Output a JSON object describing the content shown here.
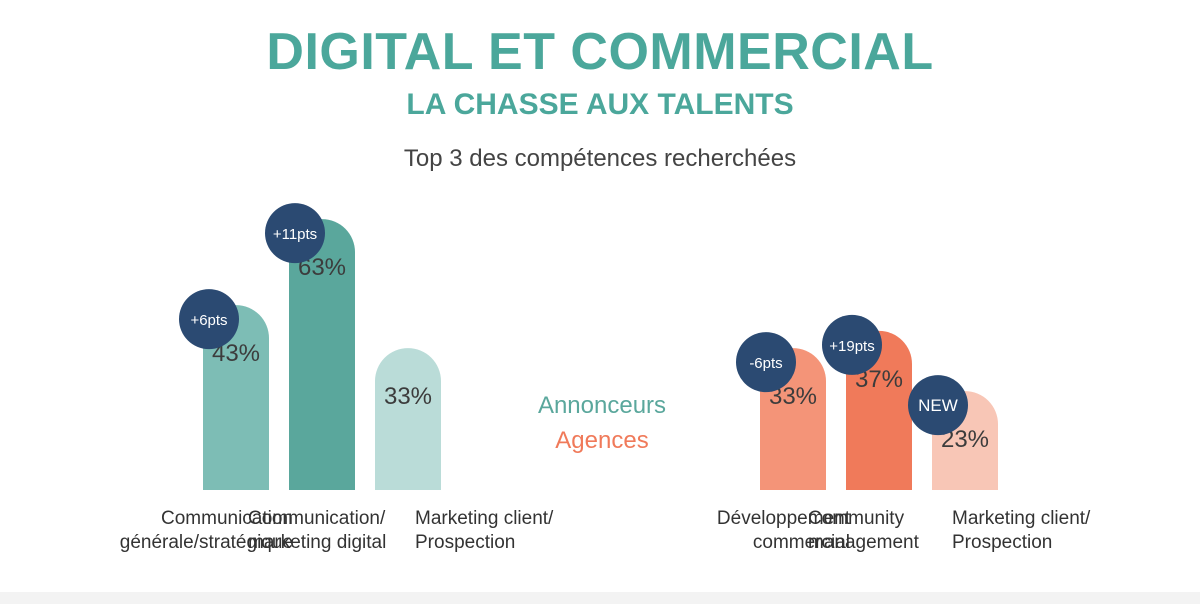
{
  "header": {
    "title": "DIGITAL ET COMMERCIAL",
    "subtitle": "LA CHASSE AUX TALENTS",
    "heading": "Top 3 des compétences recherchées"
  },
  "legend": [
    {
      "label": "Annonceurs",
      "color": "#5aa79c"
    },
    {
      "label": "Agences",
      "color": "#f07a5a"
    }
  ],
  "badge_color": "#2b4a72",
  "chart_data": [
    {
      "type": "bar",
      "group": "Annonceurs",
      "categories": [
        "Communication\ngénérale/stratégique",
        "Communication/\nmarketing digital",
        "Marketing client/\nProspection"
      ],
      "values": [
        43,
        63,
        33
      ],
      "value_labels": [
        "43%",
        "63%",
        "33%"
      ],
      "changes": [
        "+6pts",
        "+11pts",
        ""
      ],
      "colors": [
        "#7dbdb5",
        "#5aa79c",
        "#badcd8"
      ]
    },
    {
      "type": "bar",
      "group": "Agences",
      "categories": [
        "Développement\ncommercial",
        "Community\nmanagement",
        "Marketing client/\nProspection"
      ],
      "values": [
        33,
        37,
        23
      ],
      "value_labels": [
        "33%",
        "37%",
        "23%"
      ],
      "changes": [
        "-6pts",
        "+19pts",
        "NEW"
      ],
      "colors": [
        "#f49478",
        "#f07a5a",
        "#f8c6b6"
      ]
    }
  ]
}
